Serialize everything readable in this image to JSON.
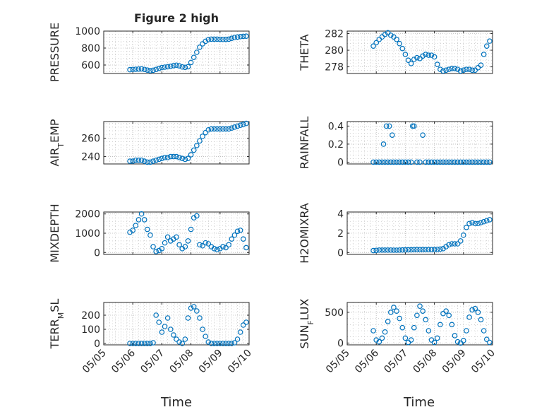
{
  "figure": {
    "title": "Figure 2 high",
    "xlabel": "Time",
    "xticks": [
      "05/05",
      "05/06",
      "05/07",
      "05/08",
      "05/09",
      "05/10"
    ],
    "xlim": [
      0,
      5
    ]
  },
  "colors": {
    "marker": "#0072BD",
    "axis": "#262626",
    "grid": "#b8b8b8"
  },
  "chart_data": [
    {
      "type": "scatter",
      "ylabel": "PRESSURE",
      "ylim": [
        500,
        1000
      ],
      "yticks": [
        600,
        800,
        1000
      ],
      "grid": true,
      "x": [
        0.9,
        1.0,
        1.1,
        1.2,
        1.3,
        1.4,
        1.5,
        1.6,
        1.7,
        1.8,
        1.9,
        2.0,
        2.1,
        2.2,
        2.3,
        2.4,
        2.5,
        2.6,
        2.7,
        2.8,
        2.9,
        3.0,
        3.1,
        3.2,
        3.3,
        3.4,
        3.5,
        3.6,
        3.7,
        3.8,
        3.9,
        4.0,
        4.1,
        4.2,
        4.3,
        4.4,
        4.5,
        4.6,
        4.7,
        4.8,
        4.9
      ],
      "y": [
        545,
        548,
        550,
        552,
        555,
        548,
        540,
        533,
        538,
        548,
        560,
        570,
        575,
        580,
        585,
        592,
        598,
        590,
        578,
        572,
        580,
        630,
        690,
        750,
        810,
        850,
        880,
        900,
        905,
        905,
        905,
        903,
        902,
        903,
        905,
        915,
        925,
        930,
        935,
        938,
        940
      ]
    },
    {
      "type": "scatter",
      "ylabel": "THETA",
      "ylim": [
        277.2,
        282.3
      ],
      "yticks": [
        278,
        280,
        282
      ],
      "grid": true,
      "x": [
        0.9,
        1.0,
        1.1,
        1.2,
        1.3,
        1.4,
        1.5,
        1.6,
        1.7,
        1.8,
        1.9,
        2.0,
        2.1,
        2.2,
        2.3,
        2.4,
        2.5,
        2.6,
        2.7,
        2.8,
        2.9,
        3.0,
        3.1,
        3.2,
        3.3,
        3.4,
        3.5,
        3.6,
        3.7,
        3.8,
        3.9,
        4.0,
        4.1,
        4.2,
        4.3,
        4.4,
        4.5,
        4.6,
        4.7,
        4.8,
        4.9
      ],
      "y": [
        280.5,
        280.9,
        281.3,
        281.6,
        281.9,
        282.1,
        281.8,
        281.6,
        281.3,
        280.8,
        280.2,
        279.5,
        278.8,
        278.4,
        278.9,
        279.1,
        279.0,
        279.3,
        279.5,
        279.4,
        279.4,
        279.2,
        278.3,
        277.7,
        277.5,
        277.6,
        277.7,
        277.8,
        277.8,
        277.7,
        277.5,
        277.6,
        277.7,
        277.7,
        277.6,
        277.6,
        277.9,
        278.2,
        279.5,
        280.5,
        281.1
      ]
    },
    {
      "type": "scatter",
      "ylabel": "AIR_TEMP",
      "ylim": [
        232,
        278
      ],
      "yticks": [
        240,
        260
      ],
      "grid": true,
      "x": [
        0.9,
        1.0,
        1.1,
        1.2,
        1.3,
        1.4,
        1.5,
        1.6,
        1.7,
        1.8,
        1.9,
        2.0,
        2.1,
        2.2,
        2.3,
        2.4,
        2.5,
        2.6,
        2.7,
        2.8,
        2.9,
        3.0,
        3.1,
        3.2,
        3.3,
        3.4,
        3.5,
        3.6,
        3.7,
        3.8,
        3.9,
        4.0,
        4.1,
        4.2,
        4.3,
        4.4,
        4.5,
        4.6,
        4.7,
        4.8,
        4.9
      ],
      "y": [
        235,
        235,
        236,
        236,
        236,
        235,
        234,
        234,
        235,
        236,
        237,
        238,
        239,
        239,
        240,
        240,
        240,
        239,
        238,
        237,
        238,
        242,
        247,
        252,
        257,
        262,
        266,
        269,
        270,
        270,
        270,
        270,
        270,
        270,
        270,
        271,
        272,
        273,
        274,
        275,
        276
      ]
    },
    {
      "type": "scatter",
      "ylabel": "RAINFALL",
      "ylim": [
        -0.02,
        0.45
      ],
      "yticks": [
        0,
        0.2,
        0.4
      ],
      "grid": true,
      "x": [
        0.9,
        1.0,
        1.1,
        1.2,
        1.25,
        1.3,
        1.35,
        1.4,
        1.45,
        1.5,
        1.55,
        1.6,
        1.7,
        1.8,
        1.9,
        2.0,
        2.1,
        2.2,
        2.25,
        2.3,
        2.4,
        2.5,
        2.6,
        2.7,
        2.8,
        2.9,
        3.0,
        3.1,
        3.2,
        3.3,
        3.4,
        3.5,
        3.6,
        3.7,
        3.8,
        3.9,
        4.0,
        4.1,
        4.2,
        4.3,
        4.4,
        4.5,
        4.6,
        4.7,
        4.8,
        4.9
      ],
      "y": [
        0,
        0,
        0,
        0,
        0.2,
        0,
        0.4,
        0,
        0.4,
        0,
        0.3,
        0,
        0,
        0,
        0,
        0,
        0,
        0,
        0.4,
        0.4,
        0,
        0,
        0.3,
        0,
        0,
        0,
        0,
        0,
        0,
        0,
        0,
        0,
        0,
        0,
        0,
        0,
        0,
        0,
        0,
        0,
        0,
        0,
        0,
        0,
        0,
        0
      ]
    },
    {
      "type": "scatter",
      "ylabel": "MIXDEPTH",
      "ylim": [
        -100,
        2100
      ],
      "yticks": [
        0,
        1000,
        2000
      ],
      "grid": true,
      "x": [
        0.9,
        1.0,
        1.1,
        1.2,
        1.3,
        1.4,
        1.5,
        1.6,
        1.7,
        1.8,
        1.9,
        2.0,
        2.1,
        2.2,
        2.3,
        2.4,
        2.5,
        2.6,
        2.7,
        2.8,
        2.9,
        3.0,
        3.1,
        3.2,
        3.3,
        3.4,
        3.5,
        3.6,
        3.7,
        3.8,
        3.9,
        4.0,
        4.1,
        4.2,
        4.3,
        4.4,
        4.5,
        4.6,
        4.7,
        4.8,
        4.9
      ],
      "y": [
        1050,
        1150,
        1400,
        1700,
        2000,
        1700,
        1200,
        900,
        300,
        50,
        100,
        200,
        500,
        800,
        600,
        700,
        800,
        400,
        200,
        300,
        600,
        1200,
        1800,
        1900,
        400,
        350,
        500,
        450,
        300,
        200,
        150,
        200,
        300,
        250,
        400,
        700,
        900,
        1100,
        1150,
        700,
        250
      ]
    },
    {
      "type": "scatter",
      "ylabel": "H2OMIXRA",
      "ylim": [
        -0.2,
        4.2
      ],
      "yticks": [
        0,
        2,
        4
      ],
      "grid": true,
      "x": [
        0.9,
        1.0,
        1.1,
        1.2,
        1.3,
        1.4,
        1.5,
        1.6,
        1.7,
        1.8,
        1.9,
        2.0,
        2.1,
        2.2,
        2.3,
        2.4,
        2.5,
        2.6,
        2.7,
        2.8,
        2.9,
        3.0,
        3.1,
        3.2,
        3.3,
        3.4,
        3.5,
        3.6,
        3.7,
        3.8,
        3.9,
        4.0,
        4.1,
        4.2,
        4.3,
        4.4,
        4.5,
        4.6,
        4.7,
        4.8,
        4.9
      ],
      "y": [
        0.2,
        0.22,
        0.25,
        0.25,
        0.25,
        0.25,
        0.25,
        0.24,
        0.24,
        0.25,
        0.26,
        0.27,
        0.28,
        0.28,
        0.3,
        0.3,
        0.3,
        0.3,
        0.3,
        0.3,
        0.3,
        0.3,
        0.32,
        0.35,
        0.4,
        0.6,
        0.8,
        0.9,
        0.9,
        0.9,
        1.2,
        1.8,
        2.6,
        3.0,
        3.1,
        3.0,
        3.0,
        3.1,
        3.2,
        3.3,
        3.4
      ]
    },
    {
      "type": "scatter",
      "ylabel": "TERR_MSL",
      "ylim": [
        -10,
        290
      ],
      "yticks": [
        0,
        100,
        200
      ],
      "grid": true,
      "x": [
        0.9,
        1.0,
        1.1,
        1.2,
        1.3,
        1.4,
        1.5,
        1.6,
        1.7,
        1.8,
        1.9,
        2.0,
        2.1,
        2.2,
        2.3,
        2.4,
        2.5,
        2.6,
        2.7,
        2.8,
        2.9,
        3.0,
        3.1,
        3.2,
        3.3,
        3.4,
        3.5,
        3.6,
        3.7,
        3.8,
        3.9,
        4.0,
        4.1,
        4.2,
        4.3,
        4.4,
        4.5,
        4.6,
        4.7,
        4.8,
        4.9
      ],
      "y": [
        0,
        0,
        0,
        0,
        0,
        0,
        0,
        0,
        5,
        200,
        150,
        80,
        120,
        180,
        100,
        60,
        30,
        10,
        0,
        30,
        180,
        250,
        260,
        230,
        180,
        100,
        50,
        10,
        0,
        0,
        0,
        0,
        0,
        0,
        0,
        0,
        5,
        30,
        80,
        130,
        150
      ]
    },
    {
      "type": "scatter",
      "ylabel": "SUN_FLUX",
      "ylim": [
        -30,
        660
      ],
      "yticks": [
        0,
        500
      ],
      "grid": true,
      "x": [
        0.9,
        1.0,
        1.1,
        1.2,
        1.3,
        1.4,
        1.5,
        1.6,
        1.7,
        1.8,
        1.9,
        2.0,
        2.1,
        2.2,
        2.3,
        2.4,
        2.5,
        2.6,
        2.7,
        2.8,
        2.9,
        3.0,
        3.1,
        3.2,
        3.3,
        3.4,
        3.5,
        3.6,
        3.7,
        3.8,
        3.9,
        4.0,
        4.1,
        4.2,
        4.3,
        4.4,
        4.5,
        4.6,
        4.7,
        4.8,
        4.9
      ],
      "y": [
        200,
        50,
        20,
        80,
        180,
        350,
        500,
        580,
        520,
        400,
        250,
        80,
        10,
        50,
        250,
        450,
        600,
        520,
        380,
        200,
        50,
        10,
        80,
        300,
        480,
        520,
        450,
        300,
        120,
        20,
        0,
        40,
        200,
        420,
        540,
        560,
        500,
        380,
        200,
        60,
        10
      ]
    }
  ]
}
